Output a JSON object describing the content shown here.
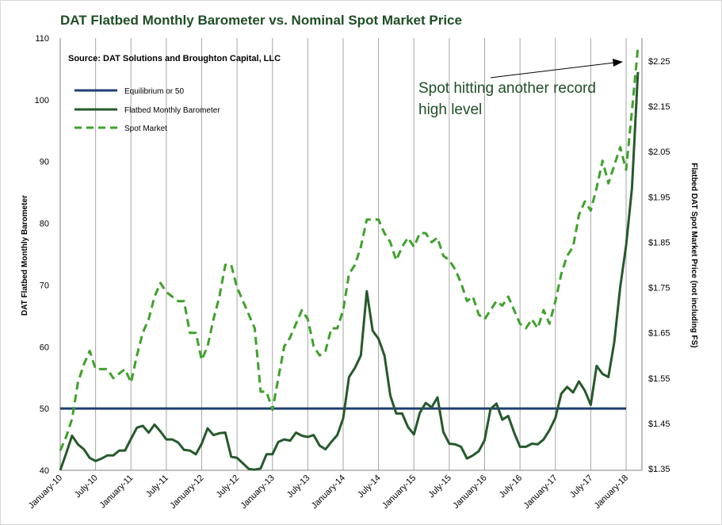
{
  "chart_data": {
    "type": "line",
    "title": "DAT Flatbed Monthly Barometer vs. Nominal Spot Market Price",
    "source": "Source: DAT Solutions and Broughton Capital, LLC",
    "annotation": [
      "Spot hitting another record",
      "high level"
    ],
    "y_left": {
      "label": "DAT Flatbed Monthly Barometer",
      "range": [
        40,
        110
      ],
      "ticks": [
        "40",
        "50",
        "60",
        "70",
        "80",
        "90",
        "100",
        "110"
      ]
    },
    "y_right": {
      "label": "Flatbed DAT Spot Market Price (not including FS)",
      "range": [
        1.35,
        2.3
      ],
      "ticks": [
        "$1.35",
        "$1.45",
        "$1.55",
        "$1.65",
        "$1.75",
        "$1.85",
        "$1.95",
        "$2.05",
        "$2.15",
        "$2.25"
      ],
      "tick_values": [
        1.35,
        1.45,
        1.55,
        1.65,
        1.75,
        1.85,
        1.95,
        2.05,
        2.15,
        2.25
      ]
    },
    "x_labels": [
      "January-10",
      "July-10",
      "January-11",
      "July-11",
      "January-12",
      "July-12",
      "January-13",
      "July-13",
      "January-14",
      "July-14",
      "January-15",
      "July-15",
      "January-16",
      "July-16",
      "January-17",
      "July-17",
      "January-18"
    ],
    "grid": "vertical",
    "legend_position": "top-left",
    "series": [
      {
        "name": "Equilibrium or 50",
        "axis": "left",
        "style": "solid",
        "color": "#1f3f73",
        "values": [
          50,
          50
        ]
      },
      {
        "name": "Flatbed Monthly Barometer",
        "axis": "left",
        "style": "solid",
        "color": "#255a2a",
        "values": [
          40,
          42.7,
          45.6,
          44.2,
          43.4,
          42.0,
          41.5,
          41.9,
          42.4,
          42.4,
          43.2,
          43.2,
          45.1,
          46.9,
          47.2,
          46.1,
          47.4,
          46.3,
          45.0,
          45.0,
          44.5,
          43.3,
          43.2,
          42.6,
          44.3,
          46.8,
          45.7,
          46.0,
          46.1,
          42.2,
          42.0,
          41.1,
          40.2,
          40.1,
          40.3,
          42.6,
          42.6,
          44.6,
          45.0,
          44.8,
          46.1,
          45.6,
          45.4,
          45.7,
          44.0,
          43.4,
          44.6,
          45.7,
          48.4,
          55.1,
          56.6,
          58.6,
          69.0,
          62.6,
          61.3,
          58.6,
          52.1,
          49.2,
          49.2,
          47.0,
          45.8,
          49.3,
          50.9,
          50.2,
          51.8,
          46.2,
          44.3,
          44.2,
          43.8,
          41.9,
          42.4,
          43.1,
          44.9,
          49.9,
          50.8,
          48.2,
          48.8,
          46.1,
          43.8,
          43.8,
          44.3,
          44.2,
          45.0,
          46.5,
          48.5,
          52.4,
          53.5,
          52.6,
          54.4,
          52.9,
          50.6,
          56.9,
          55.6,
          55.1,
          60.8,
          69.7,
          76.4,
          85.7,
          104.5
        ]
      },
      {
        "name": "Spot Market",
        "axis": "right",
        "style": "dashed",
        "color": "#3ea12a",
        "values": [
          1.39,
          1.42,
          1.46,
          1.54,
          1.58,
          1.61,
          1.57,
          1.57,
          1.57,
          1.55,
          1.56,
          1.57,
          1.54,
          1.6,
          1.65,
          1.68,
          1.73,
          1.76,
          1.74,
          1.73,
          1.72,
          1.72,
          1.65,
          1.65,
          1.59,
          1.62,
          1.68,
          1.73,
          1.8,
          1.8,
          1.75,
          1.72,
          1.69,
          1.66,
          1.52,
          1.52,
          1.48,
          1.55,
          1.62,
          1.64,
          1.67,
          1.7,
          1.68,
          1.62,
          1.6,
          1.61,
          1.66,
          1.66,
          1.7,
          1.78,
          1.8,
          1.84,
          1.9,
          1.9,
          1.9,
          1.87,
          1.85,
          1.81,
          1.84,
          1.86,
          1.84,
          1.87,
          1.87,
          1.85,
          1.86,
          1.82,
          1.81,
          1.79,
          1.76,
          1.72,
          1.73,
          1.69,
          1.68,
          1.7,
          1.72,
          1.71,
          1.73,
          1.7,
          1.67,
          1.66,
          1.68,
          1.66,
          1.7,
          1.67,
          1.72,
          1.78,
          1.82,
          1.84,
          1.91,
          1.94,
          1.92,
          1.97,
          2.03,
          1.98,
          2.02,
          2.06,
          2.01,
          2.14,
          2.28
        ]
      }
    ]
  }
}
